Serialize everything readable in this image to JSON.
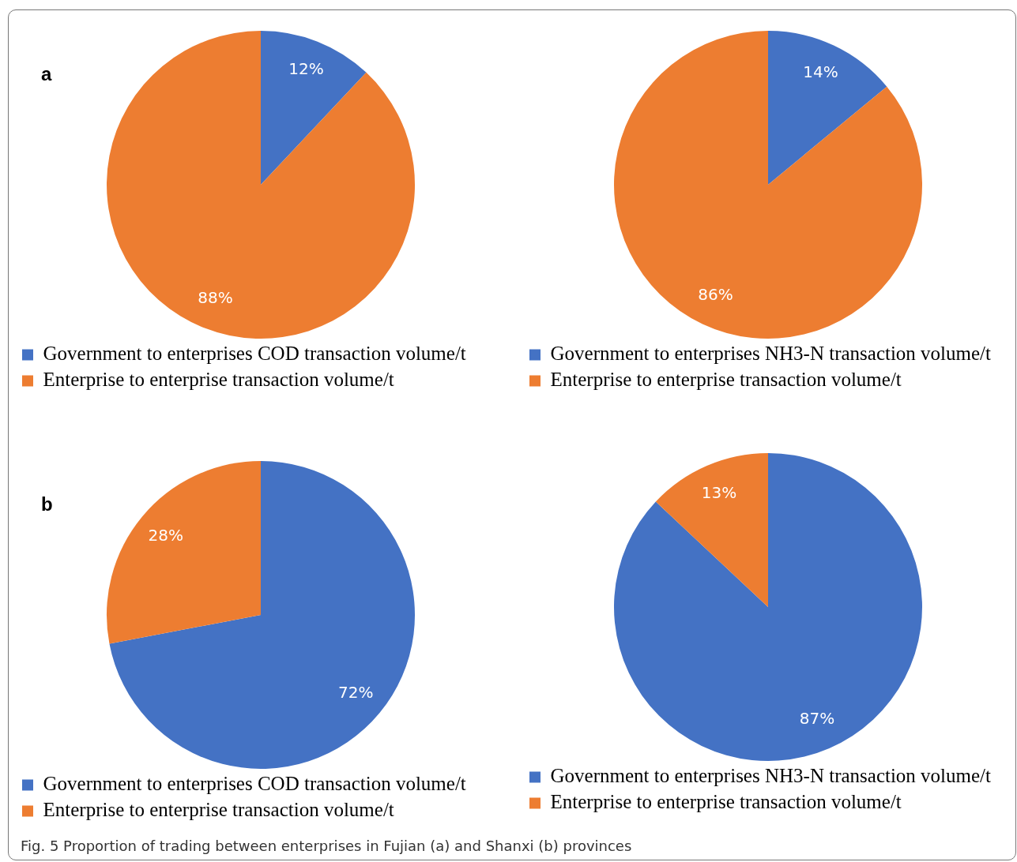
{
  "chart_data": [
    {
      "type": "pie",
      "title": "a",
      "categories": [
        "Government to enterprises COD transaction volume/t",
        "Enterprise to enterprise transaction volume/t"
      ],
      "values": [
        12,
        88
      ],
      "colors": [
        "#4472c4",
        "#ed7d31"
      ],
      "value_labels": [
        "12%",
        "88%"
      ],
      "legend": "bottom"
    },
    {
      "type": "pie",
      "categories": [
        "Government to enterprises NH3-N transaction volume/t",
        "Enterprise to enterprise transaction volume/t"
      ],
      "values": [
        14,
        86
      ],
      "colors": [
        "#4472c4",
        "#ed7d31"
      ],
      "value_labels": [
        "14%",
        "86%"
      ],
      "legend": "bottom"
    },
    {
      "type": "pie",
      "title": "b",
      "categories": [
        "Government to enterprises COD transaction volume/t",
        "Enterprise to enterprise transaction volume/t"
      ],
      "values": [
        72,
        28
      ],
      "colors": [
        "#4472c4",
        "#ed7d31"
      ],
      "value_labels": [
        "72%",
        "28%"
      ],
      "legend": "bottom"
    },
    {
      "type": "pie",
      "categories": [
        "Government to enterprises NH3-N transaction volume/t",
        "Enterprise to enterprise transaction volume/t"
      ],
      "values": [
        87,
        13
      ],
      "colors": [
        "#4472c4",
        "#ed7d31"
      ],
      "value_labels": [
        "87%",
        "13%"
      ],
      "legend": "bottom",
      "annotations": [
        "Fig. 5  Proportion of trading between enterprises in Fujian (a) and Shanxi (b) provinces"
      ]
    }
  ]
}
